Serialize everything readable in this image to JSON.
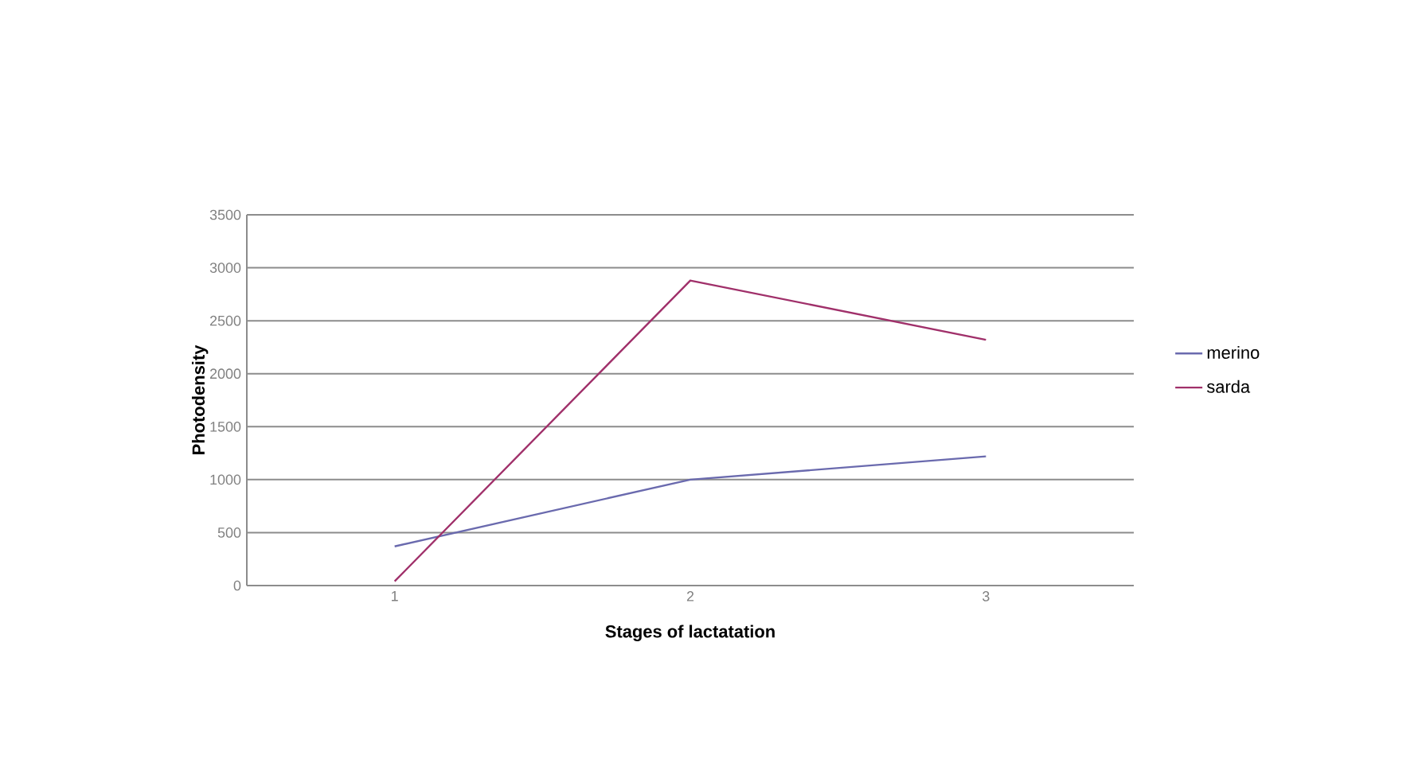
{
  "chart_data": {
    "type": "line",
    "xlabel": "Stages of lactatation",
    "ylabel": "Photodensity",
    "categories": [
      "1",
      "2",
      "3"
    ],
    "series": [
      {
        "name": "merino",
        "color": "#6a6aae",
        "values": [
          370,
          1000,
          1220
        ]
      },
      {
        "name": "sarda",
        "color": "#a0306a",
        "values": [
          40,
          2880,
          2320
        ]
      }
    ],
    "ylim": [
      0,
      3500
    ],
    "yticks": [
      0,
      500,
      1000,
      1500,
      2000,
      2500,
      3000,
      3500
    ],
    "grid": "y",
    "legend": "right",
    "marker": "none",
    "line_style": "solid"
  }
}
